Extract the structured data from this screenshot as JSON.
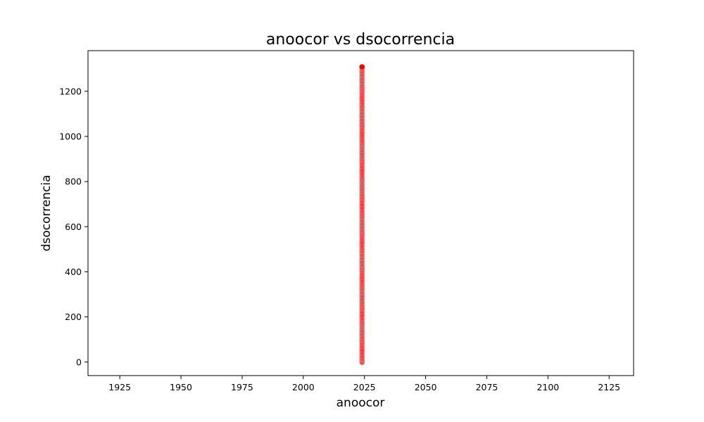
{
  "chart_data": {
    "type": "scatter",
    "title": "anoocor vs dsocorrencia",
    "xlabel": "anoocor",
    "ylabel": "dsocorrencia",
    "xlim": [
      1912,
      2135
    ],
    "ylim": [
      -60,
      1380
    ],
    "x_ticks": [
      1925,
      1950,
      1975,
      2000,
      2025,
      2050,
      2075,
      2100,
      2125
    ],
    "y_ticks": [
      0,
      200,
      400,
      600,
      800,
      1000,
      1200
    ],
    "grid": false,
    "marker_color": "#ff0000",
    "marker_edge_color": "#ffffff",
    "series": [
      {
        "x_value": 2024,
        "y_min": 0,
        "y_max": 1310,
        "y_step": 6
      }
    ]
  }
}
